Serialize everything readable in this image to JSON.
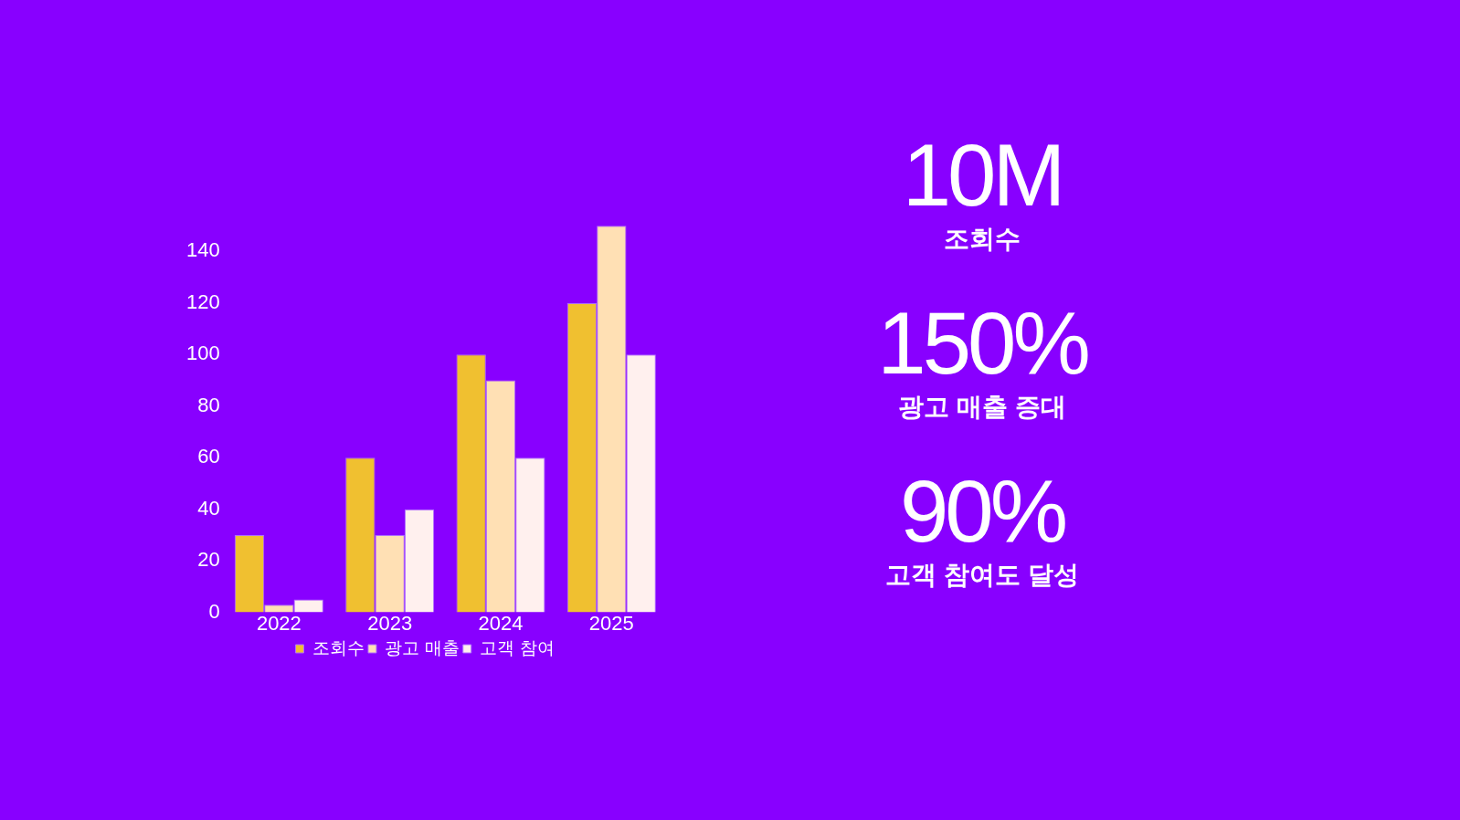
{
  "chart_data": [
    {
      "type": "bar",
      "categories": [
        "2022",
        "2023",
        "2024",
        "2025"
      ],
      "series": [
        {
          "name": "조회수",
          "color": "#f0c030",
          "values": [
            30,
            60,
            100,
            120
          ]
        },
        {
          "name": "광고 매출",
          "color": "#ffe0b4",
          "values": [
            3,
            30,
            90,
            150
          ]
        },
        {
          "name": "고객 참여",
          "color": "#fff0ee",
          "values": [
            5,
            40,
            60,
            100
          ]
        }
      ],
      "ylim": [
        0,
        150
      ],
      "yticks": [
        0,
        20,
        40,
        60,
        80,
        100,
        120,
        140
      ],
      "legend": "bottom"
    },
    {
      "type": "other",
      "annotations": [
        "10M",
        "조회수",
        "150%",
        "광고 매출 증대",
        "90%",
        "고객 참여도 달성"
      ]
    }
  ]
}
